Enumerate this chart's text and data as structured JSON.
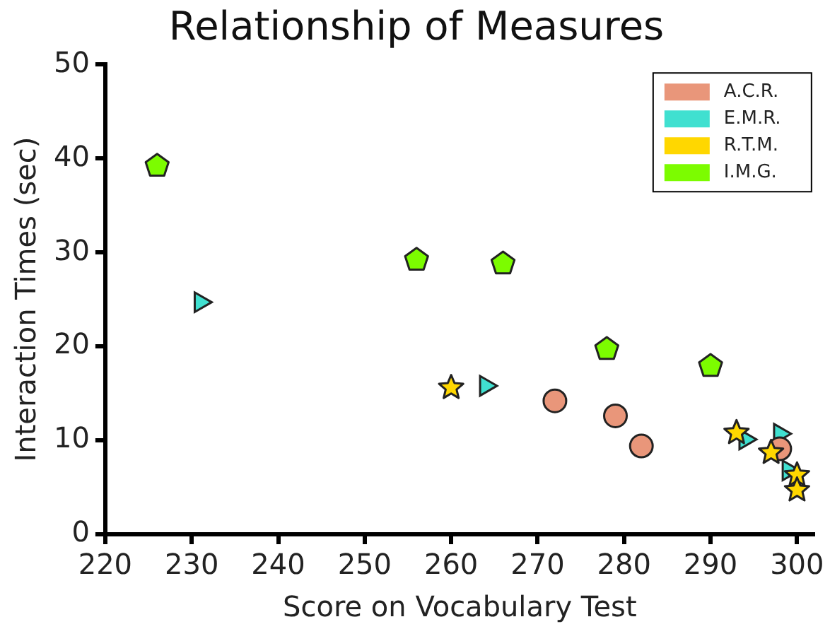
{
  "chart_data": {
    "type": "scatter",
    "title": "Relationship of Measures",
    "xlabel": "Score on Vocabulary Test",
    "ylabel": "Interaction Times (sec)",
    "xlim": [
      220,
      302
    ],
    "xticks": [
      220,
      230,
      240,
      250,
      260,
      270,
      280,
      290,
      300
    ],
    "ylim": [
      0,
      50
    ],
    "yticks": [
      0,
      10,
      20,
      30,
      40,
      50
    ],
    "grid": false,
    "legend": "top right",
    "series": [
      {
        "name": "A.C.R.",
        "color": "#e9967a",
        "marker": "circle",
        "x": [
          272,
          279,
          282,
          298
        ],
        "values": [
          14.2,
          12.6,
          9.4,
          9.1
        ]
      },
      {
        "name": "E.M.R.",
        "color": "#40e0d0",
        "marker": "triangle",
        "x": [
          231,
          264,
          294,
          298,
          299
        ],
        "values": [
          24.7,
          15.8,
          10.1,
          10.7,
          6.8
        ]
      },
      {
        "name": "R.T.M.",
        "color": "#ffd700",
        "marker": "star",
        "x": [
          260,
          293,
          297,
          300,
          300
        ],
        "values": [
          15.6,
          10.8,
          8.7,
          6.3,
          4.7
        ]
      },
      {
        "name": "I.M.G.",
        "color": "#7cfc00",
        "x": [
          226,
          256,
          266,
          278,
          290
        ],
        "values": [
          39.2,
          29.2,
          28.8,
          19.7,
          17.9
        ]
      }
    ]
  }
}
